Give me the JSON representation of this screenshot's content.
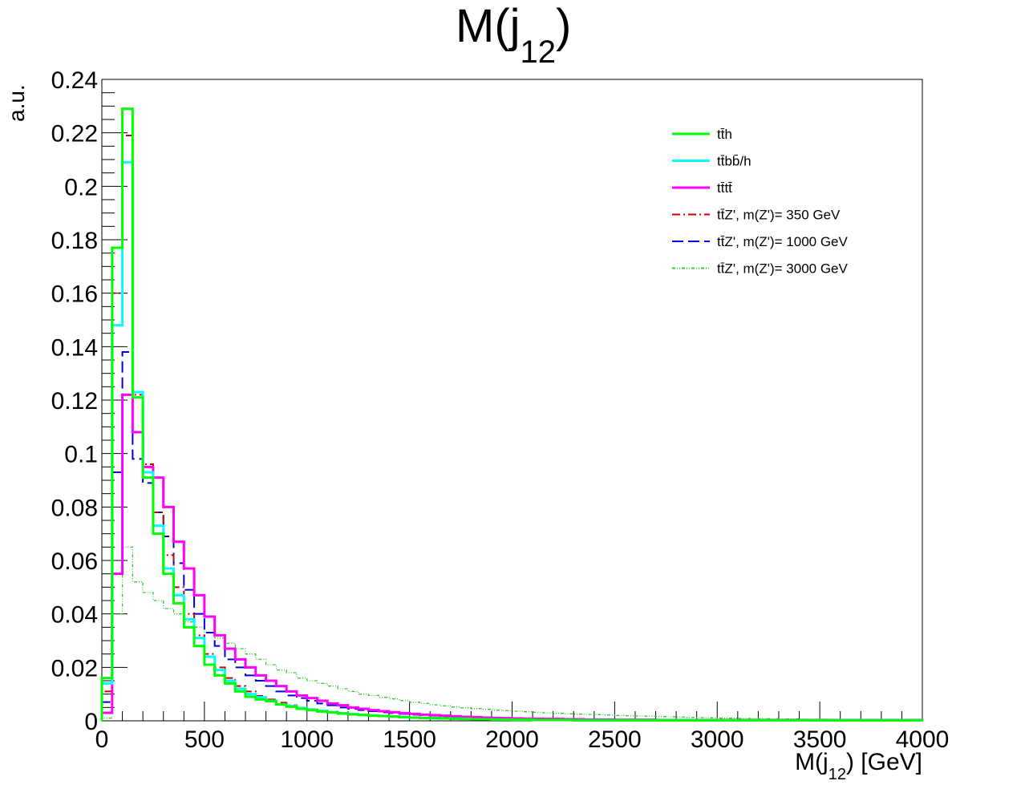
{
  "chart_data": {
    "type": "line",
    "title": "M(j",
    "title_sub": "1",
    "title_sub2": "2",
    "xlabel": "M(j",
    "xlabel_sub": "1",
    "xlabel_sub2": "2",
    "xlabel_suffix": ") [GeV]",
    "ylabel": "a.u.",
    "xlim": [
      0,
      4000
    ],
    "ylim": [
      0,
      0.24
    ],
    "bin_width": 50,
    "x_ticks": [
      "0",
      "500",
      "1000",
      "1500",
      "2000",
      "2500",
      "3000",
      "3500",
      "4000"
    ],
    "y_ticks": [
      "0",
      "0.02",
      "0.04",
      "0.06",
      "0.08",
      "0.1",
      "0.12",
      "0.14",
      "0.16",
      "0.18",
      "0.2",
      "0.22",
      "0.24"
    ],
    "legend_position": "top-right",
    "series": [
      {
        "name": "tt̄h",
        "color": "#00ff00",
        "dash": "",
        "values": [
          0.016,
          0.177,
          0.229,
          0.121,
          0.091,
          0.07,
          0.055,
          0.044,
          0.035,
          0.028,
          0.021,
          0.017,
          0.014,
          0.011,
          0.009,
          0.008,
          0.0073,
          0.0061,
          0.0053,
          0.0045,
          0.004,
          0.0035,
          0.0031,
          0.0027,
          0.0024,
          0.0022,
          0.0019,
          0.0018,
          0.0016,
          0.0014,
          0.0012,
          0.0011,
          0.001,
          0.0009,
          0.0008,
          0.0007,
          0.0006,
          0.0006,
          0.0005,
          0.0005,
          0.0004,
          0.0004,
          0.0003,
          0.0003,
          0.0003,
          0.0003,
          0.0002,
          0.0002,
          0.0002,
          0.0002,
          0.0002,
          0.0002,
          0.0002,
          0.0002,
          0.0002,
          0.0002,
          0.0002,
          0.0002,
          0.0002,
          0.0002,
          0.0002,
          0.0002,
          0.0002,
          0.0002,
          0.0002,
          0.0002,
          0.0002,
          0.0002,
          0.0002,
          0.0002,
          0.0002,
          0.0002,
          0.0002,
          0.0002,
          0.0002,
          0.0002,
          0.0002,
          0.0002,
          0.0002,
          0.0002
        ]
      },
      {
        "name": "tt̄bb̄/h",
        "color": "#00ffff",
        "dash": "",
        "values": [
          0.014,
          0.148,
          0.209,
          0.123,
          0.093,
          0.073,
          0.057,
          0.047,
          0.038,
          0.031,
          0.024,
          0.019,
          0.015,
          0.012,
          0.01,
          0.0088,
          0.0075,
          0.0062,
          0.0055,
          0.0048,
          0.0042,
          0.0037,
          0.0032,
          0.0028,
          0.0025,
          0.0022,
          0.002,
          0.0018,
          0.0016,
          0.0014,
          0.0012,
          0.0011,
          0.001,
          0.0009,
          0.0008,
          0.0007,
          0.0006,
          0.0006,
          0.0005,
          0.0005,
          0.0004,
          0.0004,
          0.0003,
          0.0003,
          0.0003,
          0.0003,
          0.0002,
          0.0002,
          0.0002,
          0.0002,
          0.0002,
          0.0002,
          0.0002,
          0.0002,
          0.0002,
          0.0002,
          0.0002,
          0.0002,
          0.0002,
          0.0002,
          0.0002,
          0.0002,
          0.0002,
          0.0002,
          0.0002,
          0.0002,
          0.0002,
          0.0002,
          0.0002,
          0.0002,
          0.0002,
          0.0002,
          0.0002,
          0.0002,
          0.0002,
          0.0002,
          0.0002,
          0.0002,
          0.0002,
          0.0002
        ]
      },
      {
        "name": "tt̄tt̄",
        "color": "#ff00ff",
        "dash": "",
        "values": [
          0.003,
          0.055,
          0.122,
          0.108,
          0.095,
          0.091,
          0.08,
          0.067,
          0.057,
          0.047,
          0.039,
          0.032,
          0.027,
          0.023,
          0.02,
          0.017,
          0.015,
          0.013,
          0.011,
          0.0095,
          0.0085,
          0.0075,
          0.0065,
          0.0058,
          0.005,
          0.0045,
          0.004,
          0.0036,
          0.0032,
          0.0029,
          0.0026,
          0.0023,
          0.0021,
          0.0019,
          0.0017,
          0.0015,
          0.0014,
          0.0012,
          0.0011,
          0.001,
          0.0009,
          0.0008,
          0.0008,
          0.0007,
          0.0007,
          0.0006,
          0.0006,
          0.0005,
          0.0005,
          0.0005,
          0.0004,
          0.0004,
          0.0004,
          0.0004,
          0.0003,
          0.0003,
          0.0003,
          0.0003,
          0.0003,
          0.0003,
          0.0003,
          0.0003,
          0.0003,
          0.0003,
          0.0003,
          0.0003,
          0.0003,
          0.0003,
          0.0003,
          0.0003,
          0.0003,
          0.0003,
          0.0003,
          0.0003,
          0.0003,
          0.0003,
          0.0003,
          0.0003,
          0.0003,
          0.0003
        ]
      },
      {
        "name": "tt̄Z', m(Z')= 350 GeV",
        "color": "#cc0000",
        "dash": "10,4,2,4",
        "values": [
          0.011,
          0.16,
          0.219,
          0.122,
          0.096,
          0.078,
          0.062,
          0.05,
          0.04,
          0.032,
          0.025,
          0.02,
          0.016,
          0.013,
          0.011,
          0.0093,
          0.008,
          0.0068,
          0.0058,
          0.005,
          0.0044,
          0.0038,
          0.0034,
          0.003,
          0.0026,
          0.0023,
          0.002,
          0.0018,
          0.0016,
          0.0014,
          0.0013,
          0.0012,
          0.001,
          0.0009,
          0.0008,
          0.0007,
          0.0006,
          0.0006,
          0.0005,
          0.0005,
          0.0004,
          0.0004,
          0.0003,
          0.0003,
          0.0003,
          0.0003,
          0.0002,
          0.0002,
          0.0002,
          0.0002,
          0.0002,
          0.0002,
          0.0002,
          0.0002,
          0.0002,
          0.0002,
          0.0002,
          0.0002,
          0.0002,
          0.0002,
          0.0002,
          0.0002,
          0.0002,
          0.0002,
          0.0002,
          0.0002,
          0.0002,
          0.0002,
          0.0002,
          0.0002,
          0.0002,
          0.0002,
          0.0002,
          0.0002,
          0.0002,
          0.0002,
          0.0002,
          0.0002,
          0.0002,
          0.0002
        ]
      },
      {
        "name": "tt̄Z', m(Z')= 1000 GeV",
        "color": "#0000dd",
        "dash": "14,6",
        "values": [
          0.007,
          0.093,
          0.138,
          0.098,
          0.089,
          0.078,
          0.069,
          0.059,
          0.049,
          0.04,
          0.033,
          0.028,
          0.023,
          0.02,
          0.017,
          0.015,
          0.013,
          0.011,
          0.0095,
          0.0085,
          0.0075,
          0.0065,
          0.0058,
          0.005,
          0.0045,
          0.004,
          0.0036,
          0.0032,
          0.0029,
          0.0026,
          0.0023,
          0.0021,
          0.0019,
          0.0017,
          0.0015,
          0.0014,
          0.0012,
          0.0011,
          0.001,
          0.0009,
          0.0008,
          0.0008,
          0.0007,
          0.0007,
          0.0006,
          0.0006,
          0.0005,
          0.0005,
          0.0005,
          0.0004,
          0.0004,
          0.0004,
          0.0004,
          0.0003,
          0.0003,
          0.0003,
          0.0003,
          0.0003,
          0.0003,
          0.0003,
          0.0003,
          0.0003,
          0.0003,
          0.0003,
          0.0003,
          0.0003,
          0.0003,
          0.0003,
          0.0003,
          0.0003,
          0.0003,
          0.0003,
          0.0003,
          0.0003,
          0.0003,
          0.0003,
          0.0003,
          0.0003,
          0.0003,
          0.0003
        ]
      },
      {
        "name": "tt̄Z', m(Z')= 3000 GeV",
        "color": "#33cc33",
        "dash": "4,2,1,2,1,2",
        "values": [
          0.001,
          0.04,
          0.065,
          0.052,
          0.048,
          0.045,
          0.042,
          0.04,
          0.037,
          0.035,
          0.033,
          0.031,
          0.029,
          0.027,
          0.025,
          0.023,
          0.021,
          0.019,
          0.018,
          0.016,
          0.015,
          0.014,
          0.013,
          0.012,
          0.011,
          0.01,
          0.0095,
          0.0088,
          0.0082,
          0.0076,
          0.007,
          0.0065,
          0.006,
          0.0056,
          0.0052,
          0.0049,
          0.0046,
          0.0043,
          0.004,
          0.0038,
          0.0036,
          0.0034,
          0.0032,
          0.003,
          0.0028,
          0.0026,
          0.0025,
          0.0024,
          0.0023,
          0.0022,
          0.002,
          0.0019,
          0.0018,
          0.0017,
          0.0016,
          0.0015,
          0.0014,
          0.0013,
          0.0012,
          0.0011,
          0.001,
          0.001,
          0.0009,
          0.0009,
          0.0008,
          0.0008,
          0.0007,
          0.0007,
          0.0006,
          0.0006,
          0.0006,
          0.0005,
          0.0005,
          0.0005,
          0.0004,
          0.0004,
          0.0004,
          0.0004,
          0.0003,
          0.0003
        ]
      }
    ]
  }
}
